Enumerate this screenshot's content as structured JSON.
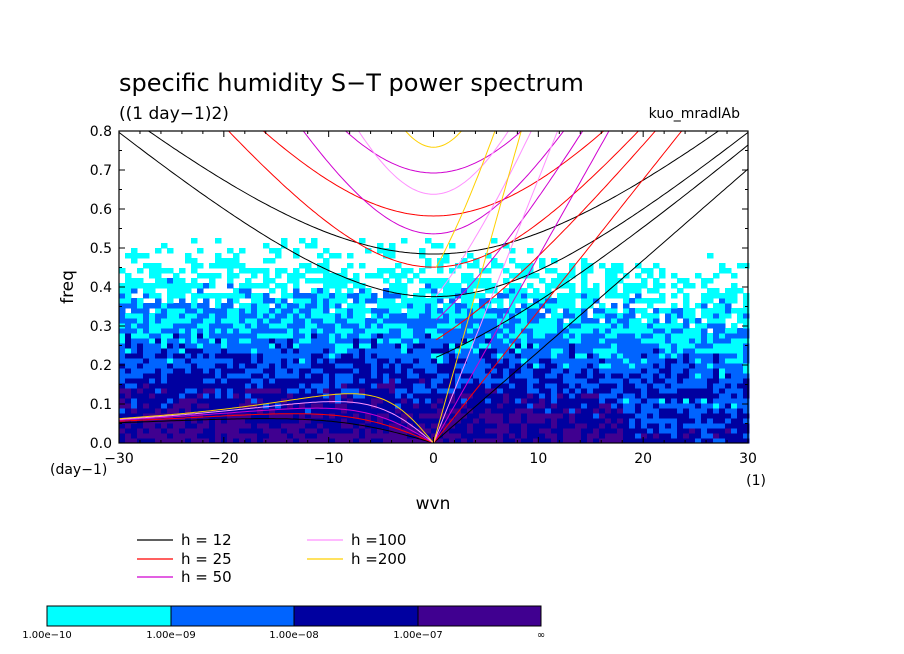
{
  "chart_data": {
    "type": "heatmap",
    "title": "specific humidity S−T power spectrum",
    "subtitle": "((1 day−1)2)",
    "run_label": "kuo_mradlAb",
    "xlabel": "wvn",
    "ylabel": "freq",
    "x_unit": "(1)",
    "y_unit": "(day−1)",
    "xlim": [
      -30,
      30
    ],
    "ylim": [
      0,
      0.8
    ],
    "x_ticks": [
      "−30",
      "−20",
      "−10",
      "0",
      "10",
      "20",
      "30"
    ],
    "x_tick_values": [
      -30,
      -20,
      -10,
      0,
      10,
      20,
      30
    ],
    "y_ticks": [
      "0.0",
      "0.1",
      "0.2",
      "0.3",
      "0.4",
      "0.5",
      "0.6",
      "0.7",
      "0.8"
    ],
    "y_tick_values": [
      0,
      0.1,
      0.2,
      0.3,
      0.4,
      0.5,
      0.6,
      0.7,
      0.8
    ],
    "colorbar": {
      "labels": [
        "1.00e−10",
        "1.00e−09",
        "1.00e−08",
        "1.00e−07",
        "∞"
      ],
      "colors": [
        "#00ffff",
        "#0064ff",
        "#0000a0",
        "#400090"
      ]
    },
    "dispersion_curves": [
      {
        "legend": "h = 12",
        "h": 12,
        "color": "#000000"
      },
      {
        "legend": "h = 25",
        "h": 25,
        "color": "#ff0000"
      },
      {
        "legend": "h = 50",
        "h": 50,
        "color": "#d000d0"
      },
      {
        "legend": "h =100",
        "h": 100,
        "color": "#ff90ff"
      },
      {
        "legend": "h =200",
        "h": 200,
        "color": "#ffd000"
      }
    ]
  }
}
